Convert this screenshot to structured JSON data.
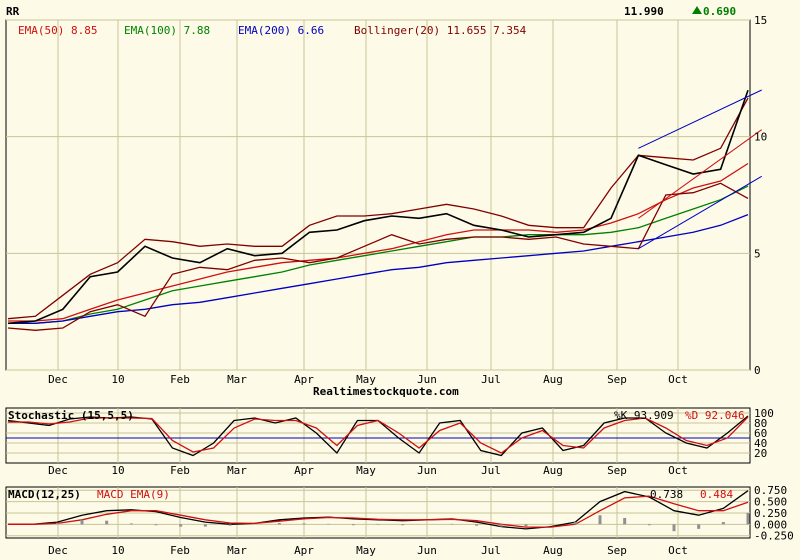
{
  "chart_data": [
    {
      "type": "line",
      "panel": "price",
      "symbol": "RR",
      "last_price": "11.990",
      "change": "0.690",
      "change_arrow": "up",
      "x_labels": [
        "Dec",
        "10",
        "Feb",
        "Mar",
        "Apr",
        "May",
        "Jun",
        "Jul",
        "Aug",
        "Sep",
        "Oct"
      ],
      "y_ticks": [
        0,
        5,
        10,
        15
      ],
      "ylim": [
        0,
        15
      ],
      "grid": true,
      "legend": [
        {
          "label": "EMA(50) 8.85",
          "color": "#d01010"
        },
        {
          "label": "EMA(100) 7.88",
          "color": "#008000"
        },
        {
          "label": "EMA(200) 6.66",
          "color": "#0000c0"
        },
        {
          "label": "Bollinger(20) 11.655 7.354",
          "color": "#800000"
        }
      ],
      "series": [
        {
          "name": "EMA(50)",
          "color": "#d01010",
          "values": [
            2.1,
            2.1,
            2.2,
            2.6,
            3.0,
            3.3,
            3.6,
            3.9,
            4.2,
            4.4,
            4.6,
            4.7,
            4.8,
            5.0,
            5.2,
            5.5,
            5.8,
            6.0,
            6.0,
            6.0,
            5.9,
            6.0,
            6.3,
            6.7,
            7.3,
            7.8,
            8.1,
            8.85
          ]
        },
        {
          "name": "EMA(100)",
          "color": "#008000",
          "values": [
            2.0,
            2.0,
            2.1,
            2.4,
            2.6,
            3.0,
            3.4,
            3.6,
            3.8,
            4.0,
            4.2,
            4.5,
            4.7,
            4.9,
            5.1,
            5.3,
            5.5,
            5.7,
            5.7,
            5.8,
            5.8,
            5.8,
            5.9,
            6.1,
            6.5,
            6.9,
            7.3,
            7.88
          ]
        },
        {
          "name": "EMA(200)",
          "color": "#0000c0",
          "values": [
            2.0,
            2.0,
            2.1,
            2.3,
            2.5,
            2.6,
            2.8,
            2.9,
            3.1,
            3.3,
            3.5,
            3.7,
            3.9,
            4.1,
            4.3,
            4.4,
            4.6,
            4.7,
            4.8,
            4.9,
            5.0,
            5.1,
            5.3,
            5.5,
            5.7,
            5.9,
            6.2,
            6.66
          ]
        },
        {
          "name": "Bollinger upper",
          "color": "#800000",
          "values": [
            2.2,
            2.3,
            3.2,
            4.1,
            4.6,
            5.6,
            5.5,
            5.3,
            5.4,
            5.3,
            5.3,
            6.2,
            6.6,
            6.6,
            6.7,
            6.9,
            7.1,
            6.9,
            6.6,
            6.2,
            6.1,
            6.1,
            7.8,
            9.2,
            9.1,
            9.0,
            9.5,
            11.655
          ]
        },
        {
          "name": "Bollinger lower",
          "color": "#800000",
          "values": [
            1.8,
            1.7,
            1.8,
            2.5,
            2.8,
            2.3,
            4.1,
            4.4,
            4.3,
            4.7,
            4.8,
            4.6,
            4.8,
            5.3,
            5.8,
            5.4,
            5.6,
            5.7,
            5.7,
            5.6,
            5.7,
            5.4,
            5.3,
            5.2,
            7.5,
            7.6,
            8.0,
            7.354
          ]
        },
        {
          "name": "Price",
          "color": "#000000",
          "values": [
            2.0,
            2.1,
            2.6,
            4.0,
            4.2,
            5.3,
            4.8,
            4.6,
            5.2,
            4.9,
            5.0,
            5.9,
            6.0,
            6.4,
            6.6,
            6.5,
            6.7,
            6.2,
            6.0,
            5.7,
            5.8,
            5.9,
            6.5,
            9.2,
            8.8,
            8.4,
            8.6,
            11.99
          ]
        }
      ],
      "trendlines": [
        {
          "color": "#0000c0",
          "from": [
            23,
            9.5
          ],
          "to": [
            27.5,
            12.0
          ]
        },
        {
          "color": "#0000c0",
          "from": [
            23,
            5.2
          ],
          "to": [
            27.5,
            8.3
          ]
        },
        {
          "color": "#d01010",
          "from": [
            23,
            6.5
          ],
          "to": [
            27.5,
            10.3
          ]
        }
      ],
      "site_caption": "Realtimestockquote.com"
    },
    {
      "type": "line",
      "panel": "stochastic",
      "title": "Stochastic (15,5,5)",
      "k_label": "%K 93.909",
      "d_label": "%D 92.046",
      "y_ticks": [
        20,
        40,
        60,
        80,
        100
      ],
      "ylim": [
        0,
        110
      ],
      "reference_line": 50,
      "x_labels": [
        "Dec",
        "10",
        "Feb",
        "Mar",
        "Apr",
        "May",
        "Jun",
        "Jul",
        "Aug",
        "Sep",
        "Oct"
      ],
      "series": [
        {
          "name": "%K",
          "color": "#000000",
          "values": [
            85,
            80,
            75,
            88,
            92,
            90,
            92,
            88,
            30,
            15,
            40,
            85,
            90,
            80,
            90,
            60,
            20,
            85,
            85,
            50,
            20,
            80,
            85,
            25,
            15,
            60,
            70,
            25,
            35,
            80,
            90,
            90,
            60,
            40,
            30,
            60,
            93.909
          ]
        },
        {
          "name": "%D",
          "color": "#d01010",
          "values": [
            82,
            82,
            78,
            82,
            90,
            90,
            90,
            89,
            45,
            22,
            30,
            70,
            88,
            85,
            85,
            70,
            35,
            75,
            85,
            60,
            30,
            65,
            80,
            40,
            20,
            50,
            65,
            35,
            30,
            70,
            85,
            90,
            70,
            45,
            35,
            50,
            92.046
          ]
        }
      ]
    },
    {
      "type": "line",
      "panel": "macd",
      "title": "MACD(12,25)",
      "ema_label": "MACD EMA(9)",
      "value_label": "0.738",
      "ema_value_label": "0.484",
      "y_ticks": [
        -0.25,
        0.0,
        0.25,
        0.5,
        0.75
      ],
      "y_tick_labels": [
        "-0.250",
        "0.000",
        "0.250",
        "0.500",
        "0.750"
      ],
      "ylim": [
        -0.3,
        0.82
      ],
      "x_labels": [
        "Dec",
        "10",
        "Feb",
        "Mar",
        "Apr",
        "May",
        "Jun",
        "Jul",
        "Aug",
        "Sep",
        "Oct"
      ],
      "series": [
        {
          "name": "MACD",
          "color": "#000000",
          "values": [
            0.0,
            0.0,
            0.05,
            0.2,
            0.3,
            0.32,
            0.28,
            0.15,
            0.05,
            0.0,
            0.02,
            0.1,
            0.14,
            0.16,
            0.12,
            0.1,
            0.08,
            0.1,
            0.12,
            0.05,
            -0.05,
            -0.1,
            -0.05,
            0.05,
            0.5,
            0.72,
            0.6,
            0.3,
            0.2,
            0.35,
            0.738
          ]
        },
        {
          "name": "MACD EMA(9)",
          "color": "#d01010",
          "values": [
            0.0,
            0.0,
            0.02,
            0.1,
            0.22,
            0.3,
            0.3,
            0.2,
            0.1,
            0.03,
            0.02,
            0.07,
            0.12,
            0.15,
            0.14,
            0.11,
            0.1,
            0.1,
            0.11,
            0.08,
            0.0,
            -0.06,
            -0.06,
            0.0,
            0.3,
            0.58,
            0.62,
            0.45,
            0.3,
            0.3,
            0.484
          ]
        },
        {
          "name": "Histogram",
          "color": "#909090",
          "values": [
            0.0,
            0.0,
            0.03,
            0.1,
            0.08,
            0.02,
            -0.02,
            -0.05,
            -0.05,
            -0.03,
            0.0,
            0.03,
            0.02,
            0.01,
            -0.02,
            -0.01,
            -0.02,
            0.0,
            0.01,
            -0.03,
            -0.05,
            -0.04,
            0.01,
            0.05,
            0.2,
            0.14,
            -0.02,
            -0.15,
            -0.1,
            0.05,
            0.25
          ]
        }
      ]
    }
  ]
}
